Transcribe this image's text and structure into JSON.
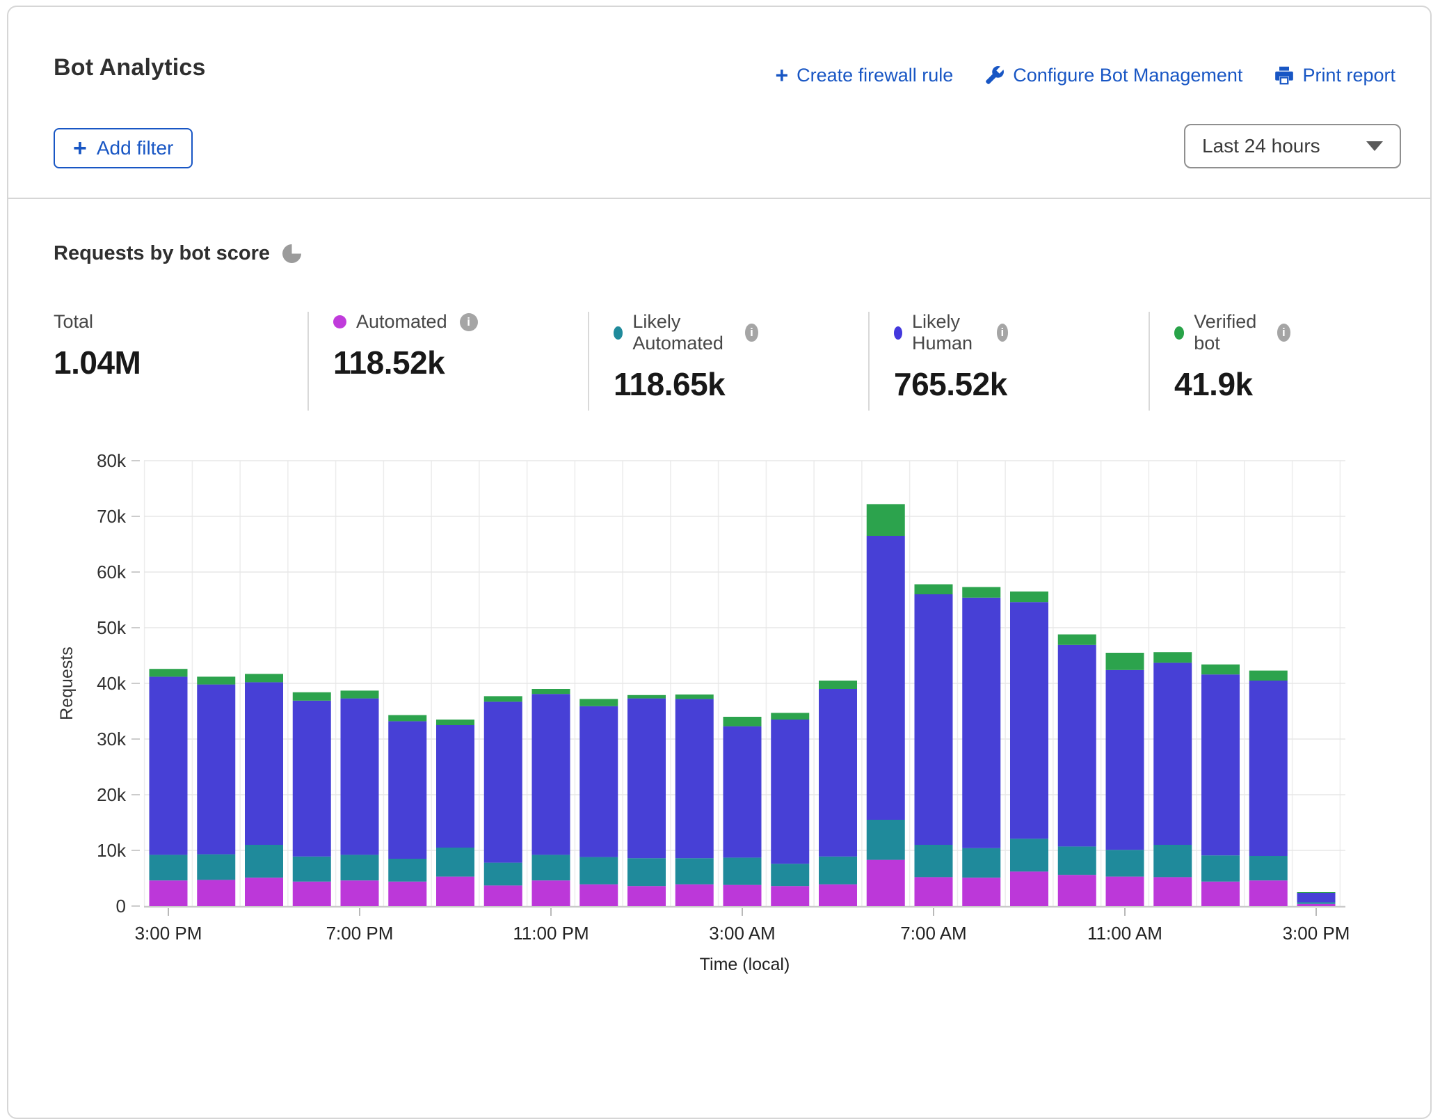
{
  "header": {
    "title": "Bot Analytics",
    "actions": [
      {
        "label": "Create firewall rule",
        "icon": "plus-icon"
      },
      {
        "label": "Configure Bot Management",
        "icon": "wrench-icon"
      },
      {
        "label": "Print report",
        "icon": "printer-icon"
      }
    ],
    "add_filter_label": "Add filter",
    "time_range_value": "Last 24 hours"
  },
  "section": {
    "title": "Requests by bot score",
    "pie_icon": "pie-chart-icon"
  },
  "stats": {
    "total": {
      "label": "Total",
      "value": "1.04M"
    },
    "series": [
      {
        "label": "Automated",
        "value": "118.52k",
        "color": "#c03bdb",
        "info_icon": "info-icon"
      },
      {
        "label": "Likely Automated",
        "value": "118.65k",
        "color": "#1f8a9b",
        "info_icon": "info-icon"
      },
      {
        "label": "Likely Human",
        "value": "765.52k",
        "color": "#4338dd",
        "info_icon": "info-icon"
      },
      {
        "label": "Verified bot",
        "value": "41.9k",
        "color": "#28a348",
        "info_icon": "info-icon"
      }
    ]
  },
  "chart_data": {
    "type": "bar",
    "stacked": true,
    "ylabel": "Requests",
    "xlabel": "Time (local)",
    "ylim": [
      0,
      80000
    ],
    "y_ticks": [
      {
        "value": 0,
        "label": "0"
      },
      {
        "value": 10000,
        "label": "10k"
      },
      {
        "value": 20000,
        "label": "20k"
      },
      {
        "value": 30000,
        "label": "30k"
      },
      {
        "value": 40000,
        "label": "40k"
      },
      {
        "value": 50000,
        "label": "50k"
      },
      {
        "value": 60000,
        "label": "60k"
      },
      {
        "value": 70000,
        "label": "70k"
      },
      {
        "value": 80000,
        "label": "80k"
      }
    ],
    "x_tick_labels": [
      "3:00 PM",
      "7:00 PM",
      "11:00 PM",
      "3:00 AM",
      "7:00 AM",
      "11:00 AM",
      "3:00 PM"
    ],
    "x_tick_bar_indexes": [
      0,
      4,
      8,
      12,
      16,
      20,
      24
    ],
    "categories": [
      "3:00 PM",
      "4:00 PM",
      "5:00 PM",
      "6:00 PM",
      "7:00 PM",
      "8:00 PM",
      "9:00 PM",
      "10:00 PM",
      "11:00 PM",
      "12:00 AM",
      "1:00 AM",
      "2:00 AM",
      "3:00 AM",
      "4:00 AM",
      "5:00 AM",
      "6:00 AM",
      "7:00 AM",
      "8:00 AM",
      "9:00 AM",
      "10:00 AM",
      "11:00 AM",
      "12:00 PM",
      "1:00 PM",
      "2:00 PM",
      "3:00 PM"
    ],
    "series": [
      {
        "name": "Automated",
        "color": "#bc38d9",
        "values": [
          4600,
          4700,
          5100,
          4400,
          4600,
          4400,
          5300,
          3700,
          4600,
          3900,
          3600,
          3900,
          3800,
          3600,
          3900,
          8300,
          5200,
          5100,
          6200,
          5600,
          5300,
          5200,
          4400,
          4600,
          400
        ]
      },
      {
        "name": "Likely Automated",
        "color": "#1f8a9b",
        "values": [
          4600,
          4600,
          5900,
          4500,
          4600,
          4100,
          5200,
          4100,
          4600,
          4900,
          5000,
          4700,
          4900,
          4000,
          5000,
          7200,
          5800,
          5300,
          5900,
          5100,
          4800,
          5800,
          4700,
          4400,
          300
        ]
      },
      {
        "name": "Likely Human",
        "color": "#4740d6",
        "values": [
          32000,
          30500,
          29200,
          28000,
          28100,
          24700,
          22000,
          28900,
          28900,
          27100,
          28700,
          28600,
          23600,
          25900,
          30100,
          51000,
          45000,
          45000,
          42500,
          36200,
          32300,
          32700,
          32500,
          31500,
          1700
        ]
      },
      {
        "name": "Verified bot",
        "color": "#2ca34d",
        "values": [
          1400,
          1400,
          1500,
          1500,
          1400,
          1100,
          1000,
          1000,
          900,
          1300,
          600,
          800,
          1700,
          1200,
          1500,
          5700,
          1800,
          1900,
          1900,
          1900,
          3100,
          1900,
          1800,
          1800,
          100
        ]
      }
    ],
    "grid": true,
    "legend_position": "top-stats-row"
  }
}
